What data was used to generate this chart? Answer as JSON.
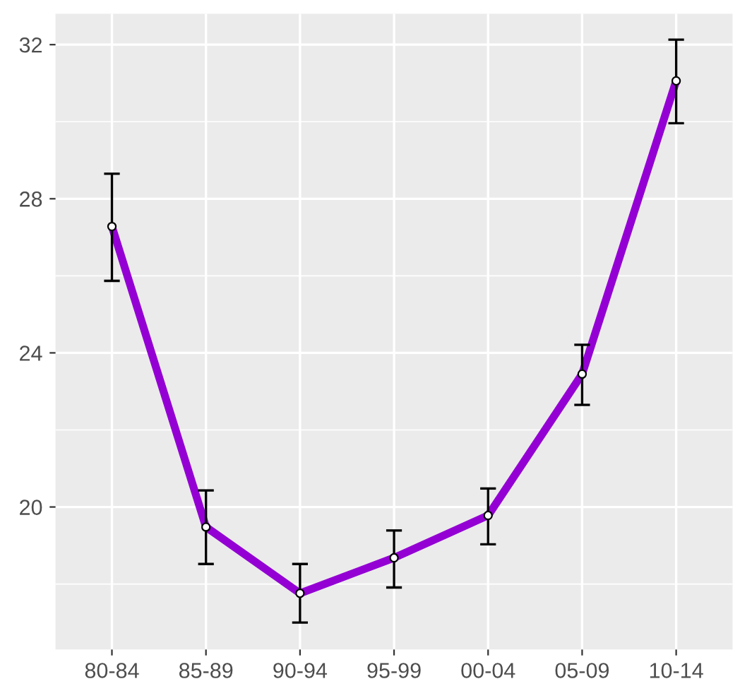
{
  "chart_data": {
    "type": "line",
    "categories": [
      "80-84",
      "85-89",
      "90-94",
      "95-99",
      "00-04",
      "05-09",
      "10-14"
    ],
    "series": [
      {
        "color": "#9400d3",
        "values": [
          27.28,
          19.48,
          17.76,
          18.68,
          19.78,
          23.45,
          31.06
        ],
        "errors": [
          [
            25.87,
            28.65
          ],
          [
            18.52,
            20.43
          ],
          [
            17.0,
            18.52
          ],
          [
            17.91,
            19.39
          ],
          [
            19.03,
            20.48
          ],
          [
            22.65,
            24.21
          ],
          [
            29.96,
            32.13
          ]
        ]
      }
    ],
    "ylim": [
      16.3,
      32.8
    ],
    "yticks": [
      20,
      24,
      28,
      32
    ],
    "grid": true,
    "marker": "circle",
    "line_style": "solid"
  }
}
